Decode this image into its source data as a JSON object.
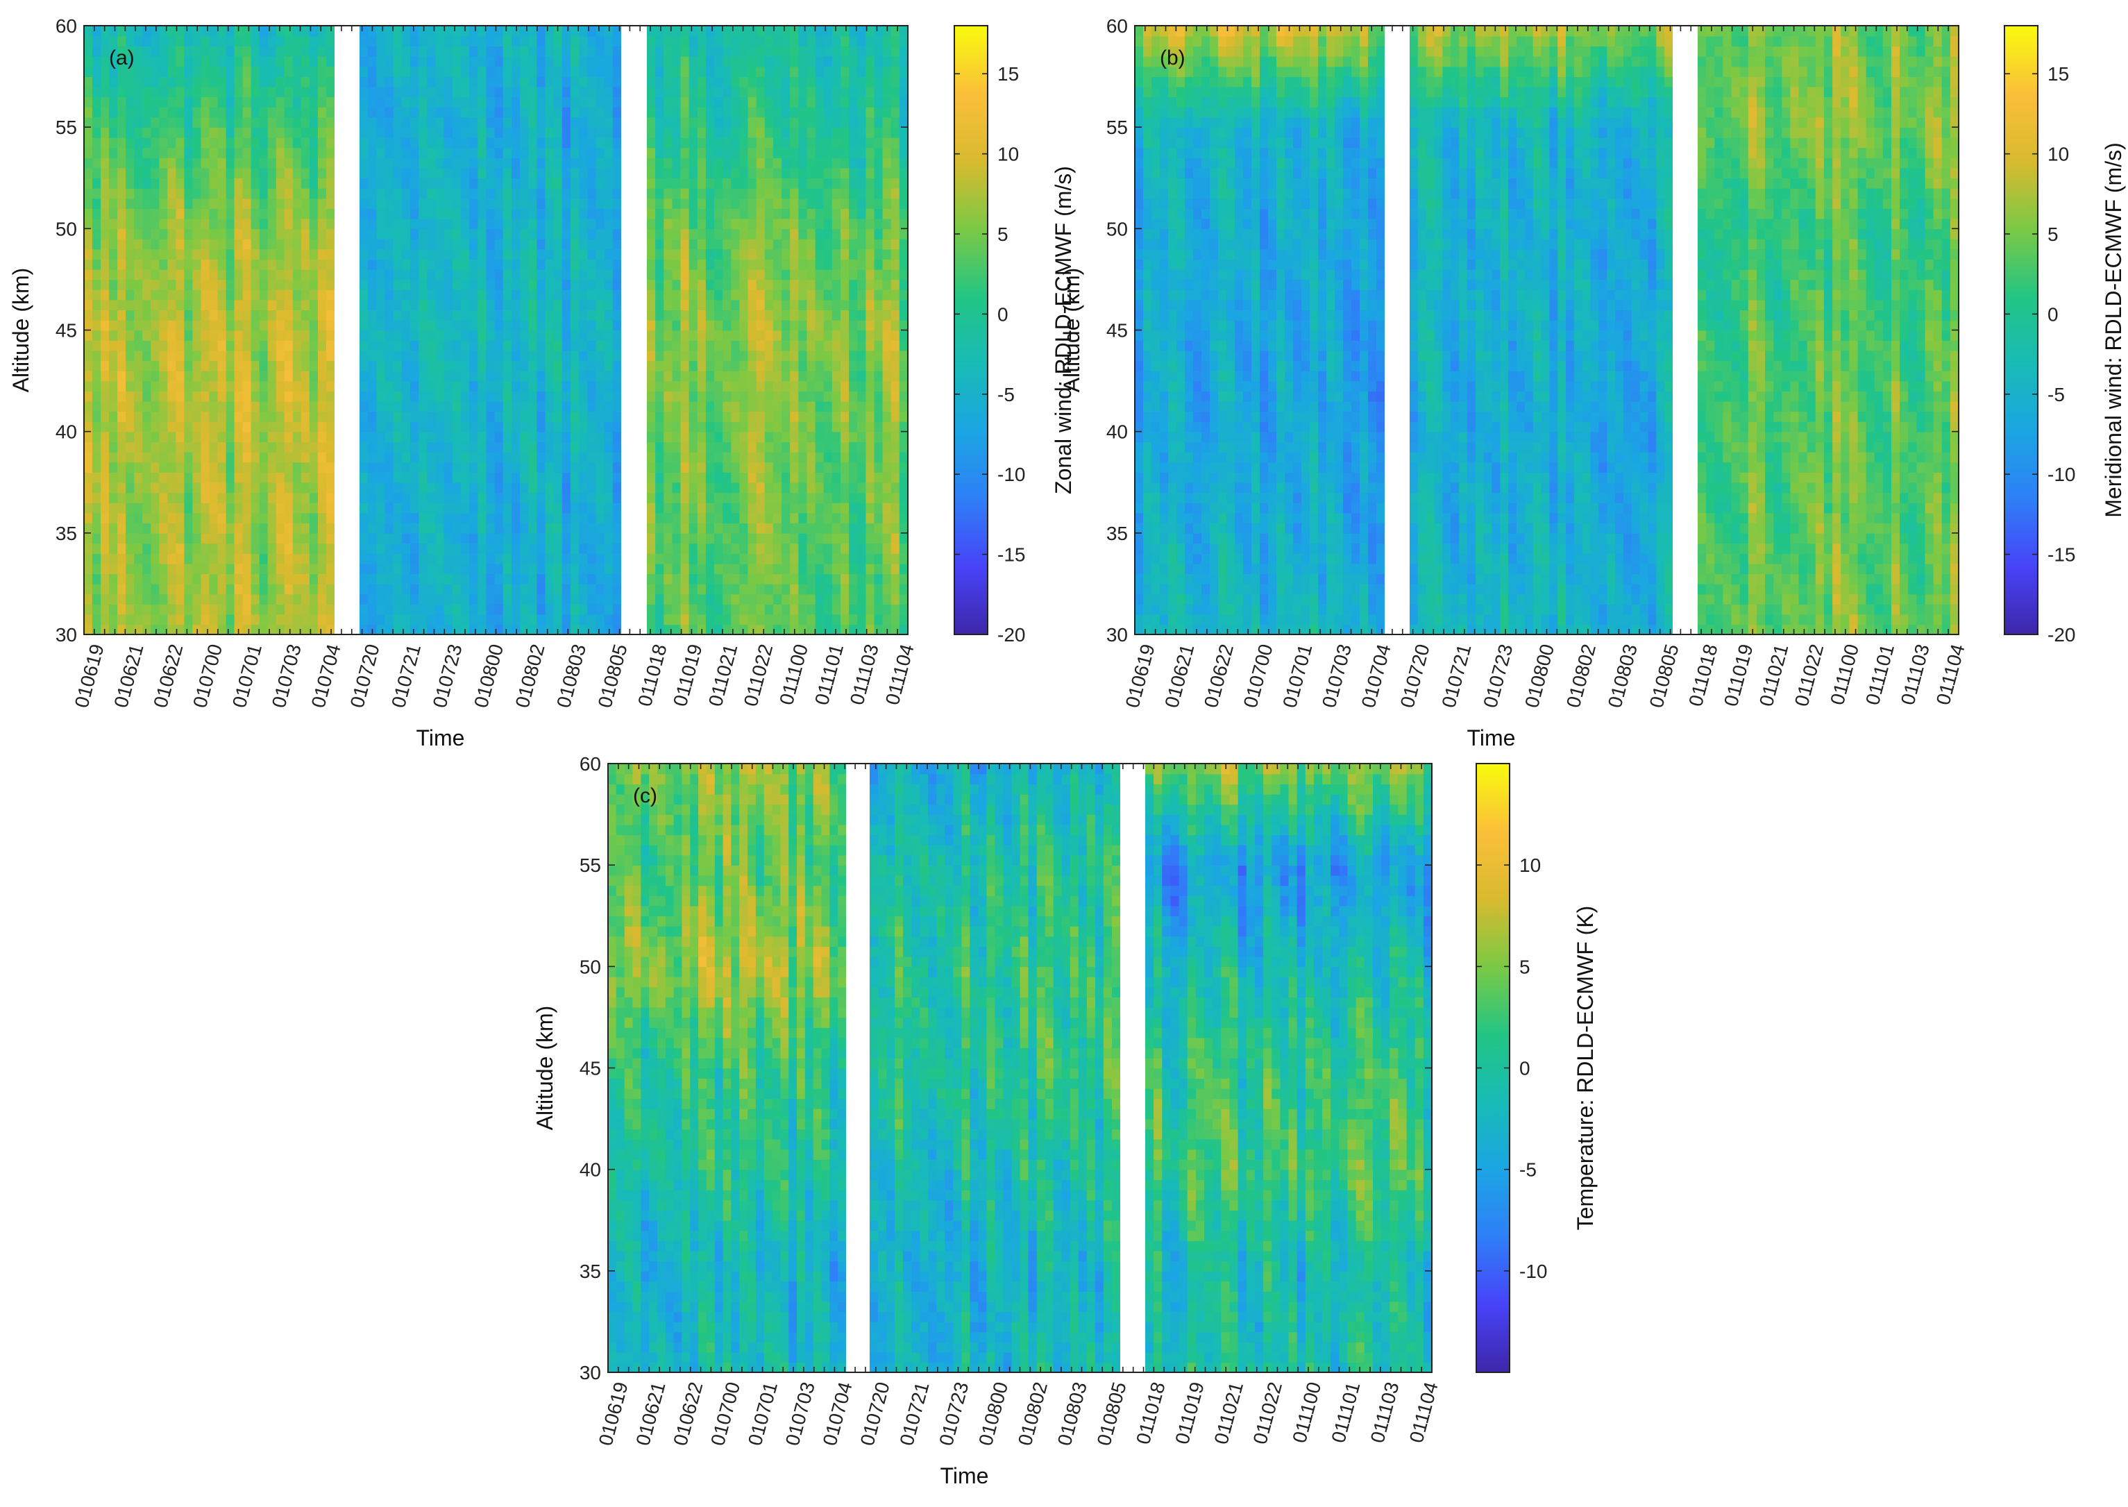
{
  "figure": {
    "colormap": [
      "#3e26a8",
      "#4743f8",
      "#2f7ff7",
      "#1ba5e3",
      "#18bbb6",
      "#23c584",
      "#7bc945",
      "#d8ba2f",
      "#fbbf3a",
      "#f9fb0e"
    ],
    "gap_color": "#ffffff",
    "panels": [
      {
        "id": "a",
        "panel_label": "(a)",
        "xlabel": "Time",
        "ylabel": "Altitude (km)",
        "colorbar_label": "Zonal wind: RDLD-ECMWF (m/s)",
        "clim": [
          -20,
          18
        ],
        "colorbar_ticks": [
          "15",
          "10",
          "5",
          "0",
          "-5",
          "-10",
          "-15",
          "-20"
        ],
        "colorbar_tick_values": [
          15,
          10,
          5,
          0,
          -5,
          -10,
          -15,
          -20
        ]
      },
      {
        "id": "b",
        "panel_label": "(b)",
        "xlabel": "Time",
        "ylabel": "Altitude (km)",
        "colorbar_label": "Meridional wind: RDLD-ECMWF (m/s)",
        "clim": [
          -20,
          18
        ],
        "colorbar_ticks": [
          "15",
          "10",
          "5",
          "0",
          "-5",
          "-10",
          "-15",
          "-20"
        ],
        "colorbar_tick_values": [
          15,
          10,
          5,
          0,
          -5,
          -10,
          -15,
          -20
        ]
      },
      {
        "id": "c",
        "panel_label": "(c)",
        "xlabel": "Time",
        "ylabel": "Altitude (km)",
        "colorbar_label": "Temperature: RDLD-ECMWF (K)",
        "clim": [
          -15,
          15
        ],
        "colorbar_ticks": [
          "10",
          "5",
          "0",
          "-5",
          "-10"
        ],
        "colorbar_tick_values": [
          10,
          5,
          0,
          -5,
          -10
        ]
      }
    ]
  },
  "chart_data": [
    {
      "type": "heatmap",
      "title": "(a)",
      "xlabel": "Time",
      "ylabel": "Altitude (km)",
      "colorbar_label": "Zonal wind: RDLD-ECMWF (m/s)",
      "ylim": [
        30,
        60
      ],
      "yticks": [
        30,
        35,
        40,
        45,
        50,
        55,
        60
      ],
      "xtick_labels": [
        "010619",
        "010621",
        "010622",
        "010700",
        "010701",
        "010703",
        "010704",
        "010720",
        "010721",
        "010723",
        "010800",
        "010802",
        "010803",
        "010805",
        "011018",
        "011019",
        "011021",
        "011022",
        "011100",
        "011101",
        "011103",
        "011104"
      ],
      "gaps_after_index": [
        6,
        13
      ],
      "clim": [
        -20,
        18
      ],
      "segment_profiles": [
        {
          "z": [
            30,
            35,
            40,
            45,
            50,
            55,
            60
          ],
          "v": [
            7,
            7,
            8,
            8,
            6,
            2,
            -3
          ]
        },
        {
          "z": [
            30,
            35,
            40,
            45,
            50,
            55,
            60
          ],
          "v": [
            -6,
            -6,
            -5,
            -4,
            -5,
            -6,
            -5
          ]
        },
        {
          "z": [
            30,
            35,
            40,
            45,
            50,
            55,
            60
          ],
          "v": [
            3,
            4,
            5,
            6,
            4,
            0,
            -2
          ]
        }
      ]
    },
    {
      "type": "heatmap",
      "title": "(b)",
      "xlabel": "Time",
      "ylabel": "Altitude (km)",
      "colorbar_label": "Meridional wind: RDLD-ECMWF (m/s)",
      "ylim": [
        30,
        60
      ],
      "yticks": [
        30,
        35,
        40,
        45,
        50,
        55,
        60
      ],
      "xtick_labels": [
        "010619",
        "010621",
        "010622",
        "010700",
        "010701",
        "010703",
        "010704",
        "010720",
        "010721",
        "010723",
        "010800",
        "010802",
        "010803",
        "010805",
        "011018",
        "011019",
        "011021",
        "011022",
        "011100",
        "011101",
        "011103",
        "011104"
      ],
      "gaps_after_index": [
        6,
        13
      ],
      "clim": [
        -20,
        18
      ],
      "segment_profiles": [
        {
          "z": [
            30,
            35,
            40,
            45,
            50,
            55,
            60
          ],
          "v": [
            -4,
            -6,
            -7,
            -7,
            -6,
            -5,
            9
          ]
        },
        {
          "z": [
            30,
            35,
            40,
            45,
            50,
            55,
            60
          ],
          "v": [
            -4,
            -5,
            -6,
            -5,
            -5,
            -4,
            7
          ]
        },
        {
          "z": [
            30,
            35,
            40,
            45,
            50,
            55,
            60
          ],
          "v": [
            5,
            4,
            4,
            3,
            2,
            6,
            5
          ]
        }
      ]
    },
    {
      "type": "heatmap",
      "title": "(c)",
      "xlabel": "Time",
      "ylabel": "Altitude (km)",
      "colorbar_label": "Temperature: RDLD-ECMWF (K)",
      "ylim": [
        30,
        60
      ],
      "yticks": [
        30,
        35,
        40,
        45,
        50,
        55,
        60
      ],
      "xtick_labels": [
        "010619",
        "010621",
        "010622",
        "010700",
        "010701",
        "010703",
        "010704",
        "010720",
        "010721",
        "010723",
        "010800",
        "010802",
        "010803",
        "010805",
        "011018",
        "011019",
        "011021",
        "011022",
        "011100",
        "011101",
        "011103",
        "011104"
      ],
      "gaps_after_index": [
        6,
        13
      ],
      "clim": [
        -15,
        15
      ],
      "segment_profiles": [
        {
          "z": [
            30,
            35,
            40,
            45,
            50,
            55,
            60
          ],
          "v": [
            -2,
            -3,
            0,
            1,
            6,
            3,
            5
          ]
        },
        {
          "z": [
            30,
            35,
            40,
            45,
            50,
            55,
            60
          ],
          "v": [
            -2,
            -3,
            -1,
            1,
            1,
            0,
            -3
          ]
        },
        {
          "z": [
            30,
            35,
            40,
            45,
            50,
            55,
            60
          ],
          "v": [
            -1,
            -2,
            2,
            1,
            -2,
            -6,
            5
          ]
        }
      ]
    }
  ]
}
